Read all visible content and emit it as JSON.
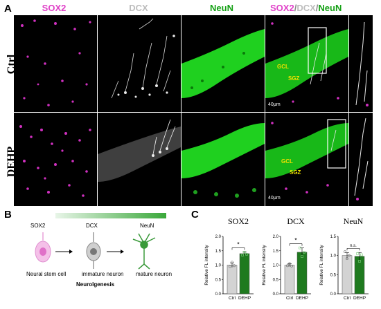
{
  "panel_labels": {
    "a": "A",
    "b": "B",
    "c": "C"
  },
  "channel_headers": {
    "sox2": "SOX2",
    "dcx": "DCX",
    "neun": "NeuN",
    "merge_sox2": "SOX2",
    "merge_slash1": "/",
    "merge_dcx": "DCX",
    "merge_slash2": "/",
    "merge_neun": "NeuN"
  },
  "rows": [
    {
      "label": "Ctrl"
    },
    {
      "label": "DEHP"
    }
  ],
  "overlay": {
    "gcl": "GCL",
    "sgz": "SGZ",
    "scale": "40μm"
  },
  "colors": {
    "sox2": "#e040c8",
    "dcx": "#c8c8c8",
    "neun": "#00b000",
    "merge_box": "#ffffff",
    "annot": "#f0e000",
    "bar_ctrl": "#d3d3d3",
    "bar_dehp": "#1f7a1f"
  },
  "schematic": {
    "stage_sox2": "SOX2",
    "stage_dcx": "DCX",
    "stage_neun": "NeuN",
    "cell1": "Neural stem cell",
    "cell2": "immature neuron",
    "cell3": "mature neuron",
    "process": "Neurolgenesis"
  },
  "chart_data": [
    {
      "type": "bar",
      "title": "SOX2",
      "ylabel": "Relative FL intensity",
      "categories": [
        "Ctrl",
        "DEHP"
      ],
      "values": [
        1.0,
        1.4
      ],
      "errors": [
        0.08,
        0.06
      ],
      "ylim": [
        0,
        2.0
      ],
      "yticks": [
        "0.0",
        "0.5",
        "1.0",
        "1.5",
        "2.0"
      ],
      "significance": "*",
      "points": [
        [
          0.95,
          1.1,
          0.98
        ],
        [
          1.35,
          1.45,
          1.38
        ]
      ]
    },
    {
      "type": "bar",
      "title": "DCX",
      "ylabel": "Relative FL intensity",
      "categories": [
        "Ctrl",
        "DEHP"
      ],
      "values": [
        1.0,
        1.45
      ],
      "errors": [
        0.05,
        0.15
      ],
      "ylim": [
        0,
        2.0
      ],
      "yticks": [
        "0.0",
        "0.5",
        "1.0",
        "1.5",
        "2.0"
      ],
      "significance": "*",
      "points": [
        [
          0.98,
          1.05,
          0.97
        ],
        [
          1.6,
          1.3,
          1.45
        ]
      ]
    },
    {
      "type": "bar",
      "title": "NeuN",
      "ylabel": "Relative FL intensity",
      "categories": [
        "Ctrl",
        "DEHP"
      ],
      "values": [
        1.0,
        0.98
      ],
      "errors": [
        0.08,
        0.1
      ],
      "ylim": [
        0,
        1.5
      ],
      "yticks": [
        "0.0",
        "0.5",
        "1.0",
        "1.5"
      ],
      "significance": "n.s.",
      "points": [
        [
          1.1,
          0.92,
          1.0
        ],
        [
          1.05,
          0.85,
          1.02
        ]
      ]
    }
  ]
}
